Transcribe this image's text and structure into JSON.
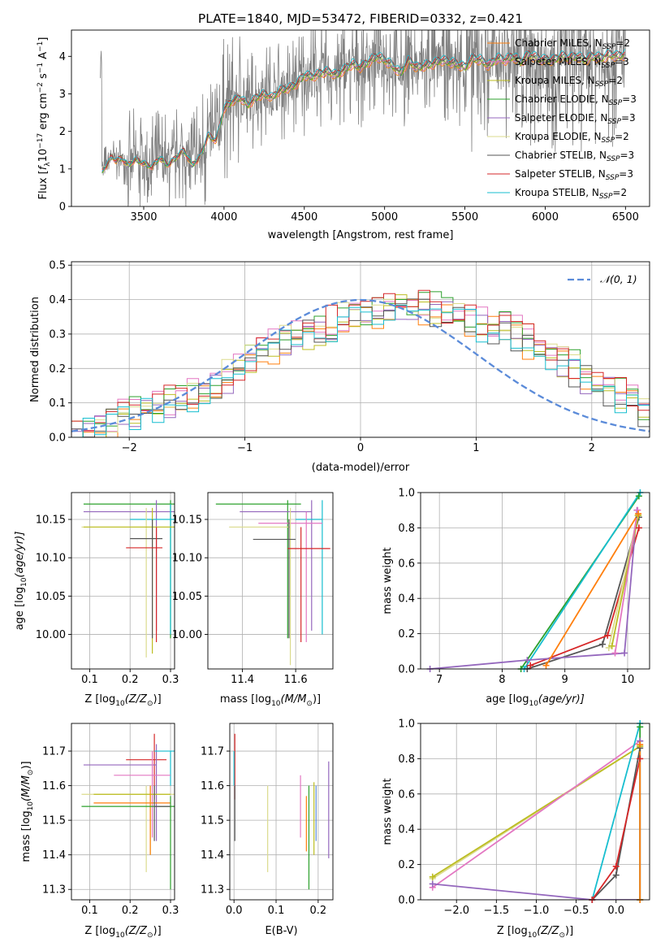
{
  "figure_title": "PLATE=1840, MJD=53472, FIBERID=0332, z=0.421",
  "colors": {
    "data": "#808080",
    "Chabrier MILES": "#ff7f0e",
    "Salpeter MILES": "#e377c2",
    "Kroupa MILES": "#bcbd22",
    "Chabrier ELODIE": "#2ca02c",
    "Salpeter ELODIE": "#9467bd",
    "Kroupa ELODIE": "#dbdb8d",
    "Chabrier STELIB": "#555555",
    "Salpeter STELIB": "#d62728",
    "Kroupa STELIB": "#17becf",
    "normal": "#5b8bd9"
  },
  "chart_data": [
    {
      "id": "spectrum",
      "type": "line",
      "title": "PLATE=1840, MJD=53472, FIBERID=0332, z=0.421",
      "xlabel": "wavelength [Angstrom, rest frame]",
      "ylabel_parts": [
        "Flux [",
        "f",
        "λ",
        "10",
        "−17",
        " erg cm",
        "−2",
        " s",
        "−1",
        " A",
        "−1",
        "]"
      ],
      "xlim": [
        3050,
        6650
      ],
      "ylim": [
        0,
        4.7
      ],
      "xticks": [
        3500,
        4000,
        4500,
        5000,
        5500,
        6000,
        6500
      ],
      "yticks": [
        0,
        1,
        2,
        3,
        4
      ],
      "legend_position": "right",
      "series": [
        {
          "name": "Chabrier MILES",
          "nssp": "2"
        },
        {
          "name": "Salpeter MILES",
          "nssp": "3"
        },
        {
          "name": "Kroupa MILES",
          "nssp": "2"
        },
        {
          "name": "Chabrier ELODIE",
          "nssp": "3"
        },
        {
          "name": "Salpeter ELODIE",
          "nssp": "3"
        },
        {
          "name": "Kroupa ELODIE",
          "nssp": "2"
        },
        {
          "name": "Chabrier STELIB",
          "nssp": "3"
        },
        {
          "name": "Salpeter STELIB",
          "nssp": "3"
        },
        {
          "name": "Kroupa STELIB",
          "nssp": "2"
        }
      ],
      "model_curve": {
        "x": [
          3240,
          3280,
          3300,
          3330,
          3360,
          3400,
          3450,
          3500,
          3550,
          3600,
          3650,
          3700,
          3750,
          3800,
          3850,
          3900,
          3950,
          4000,
          4050,
          4100,
          4150,
          4200,
          4250,
          4300,
          4350,
          4400,
          4450,
          4500,
          4550,
          4600,
          4650,
          4700,
          4750,
          4800,
          4850,
          4900,
          4950,
          5000,
          5050,
          5100,
          5150,
          5200,
          5250,
          5300,
          5350,
          5400,
          5450,
          5500,
          5550,
          5600,
          5650,
          5700,
          5750,
          5800,
          5850,
          5900,
          5950,
          6000,
          6050,
          6100,
          6150,
          6200,
          6250,
          6300,
          6350,
          6400,
          6450,
          6500
        ],
        "y": [
          0.95,
          1.15,
          1.35,
          1.2,
          1.3,
          1.1,
          1.25,
          1.15,
          1.05,
          1.3,
          1.1,
          1.3,
          1.5,
          1.1,
          1.3,
          1.9,
          1.75,
          2.6,
          2.8,
          2.9,
          2.7,
          2.9,
          3.0,
          2.9,
          3.1,
          3.15,
          3.25,
          3.5,
          3.45,
          3.55,
          3.6,
          3.5,
          3.65,
          3.8,
          3.7,
          3.85,
          4.0,
          3.9,
          3.75,
          3.55,
          3.9,
          3.7,
          3.75,
          3.8,
          3.9,
          3.85,
          3.8,
          3.7,
          3.95,
          3.9,
          3.75,
          3.95,
          3.9,
          4.0,
          3.85,
          4.05,
          3.95,
          3.9,
          3.9,
          4.0,
          3.95,
          4.0,
          3.9,
          4.0,
          3.95,
          4.05,
          4.0,
          4.05
        ]
      },
      "data_range": [
        3230,
        6500
      ]
    },
    {
      "id": "residuals",
      "type": "histogram",
      "xlabel": "(data-model)/error",
      "ylabel": "Normed distribution",
      "xlim": [
        -2.5,
        2.5
      ],
      "ylim": [
        0,
        0.51
      ],
      "xticks": [
        -2,
        -1,
        0,
        1,
        2
      ],
      "yticks": [
        0.0,
        0.1,
        0.2,
        0.3,
        0.4,
        0.5
      ],
      "legend": "𝒩(0, 1)",
      "legend_position": "top-right",
      "bin_width": 0.1,
      "base_hist": [
        0.02,
        0.03,
        0.04,
        0.05,
        0.06,
        0.07,
        0.08,
        0.09,
        0.1,
        0.11,
        0.12,
        0.14,
        0.16,
        0.18,
        0.2,
        0.22,
        0.24,
        0.26,
        0.28,
        0.3,
        0.31,
        0.32,
        0.33,
        0.34,
        0.35,
        0.36,
        0.37,
        0.38,
        0.38,
        0.39,
        0.38,
        0.37,
        0.36,
        0.35,
        0.34,
        0.33,
        0.32,
        0.31,
        0.3,
        0.28,
        0.26,
        0.24,
        0.22,
        0.2,
        0.18,
        0.16,
        0.14,
        0.12,
        0.1,
        0.08
      ]
    },
    {
      "id": "age-vs-z",
      "type": "errorbar",
      "xlabel_parts": [
        "Z [log",
        "10",
        "(Z/Z",
        "⊙",
        ")]"
      ],
      "ylabel_parts": [
        "age  [log",
        "10",
        "(age/yr)]"
      ],
      "xlim": [
        0.055,
        0.31
      ],
      "ylim": [
        9.955,
        10.185
      ],
      "xticks": [
        0.1,
        0.2,
        0.3
      ],
      "yticks": [
        10.0,
        10.05,
        10.1,
        10.15
      ],
      "points": [
        {
          "series": "Chabrier ELODIE",
          "x": 0.3,
          "y": 10.17,
          "xerr": [
            0.085,
            0.31
          ],
          "yerr": [
            9.995,
            10.175
          ]
        },
        {
          "series": "Salpeter ELODIE",
          "x": 0.265,
          "y": 10.16,
          "xerr": [
            0.085,
            0.31
          ],
          "yerr": [
            10.005,
            10.175
          ]
        },
        {
          "series": "Kroupa STELIB",
          "x": 0.3,
          "y": 10.15,
          "xerr": [
            0.2,
            0.31
          ],
          "yerr": [
            10.0,
            10.17
          ]
        },
        {
          "series": "Kroupa ELODIE",
          "x": 0.24,
          "y": 10.14,
          "xerr": [
            0.08,
            0.31
          ],
          "yerr": [
            9.97,
            10.165
          ]
        },
        {
          "series": "Kroupa MILES",
          "x": 0.255,
          "y": 10.14,
          "xerr": [
            0.085,
            0.31
          ],
          "yerr": [
            9.975,
            10.165
          ]
        },
        {
          "series": "Chabrier STELIB",
          "x": 0.255,
          "y": 10.125,
          "xerr": [
            0.2,
            0.28
          ],
          "yerr": [
            9.995,
            10.15
          ]
        },
        {
          "series": "Salpeter STELIB",
          "x": 0.265,
          "y": 10.113,
          "xerr": [
            0.19,
            0.28
          ],
          "yerr": [
            9.99,
            10.14
          ]
        }
      ]
    },
    {
      "id": "age-vs-mass",
      "type": "errorbar",
      "xlabel_parts": [
        "mass [log",
        "10",
        "(M/M",
        "⊙",
        ")]"
      ],
      "ylabel_parts": [],
      "xlim": [
        11.27,
        11.74
      ],
      "ylim": [
        9.955,
        10.185
      ],
      "xticks": [
        11.4,
        11.6
      ],
      "yticks": [
        10.0,
        10.05,
        10.1,
        10.15
      ],
      "points": [
        {
          "series": "Chabrier ELODIE",
          "x": 11.57,
          "y": 10.17,
          "xerr": [
            11.3,
            11.62
          ],
          "yerr": [
            9.995,
            10.175
          ]
        },
        {
          "series": "Salpeter ELODIE",
          "x": 11.66,
          "y": 10.16,
          "xerr": [
            11.39,
            11.66
          ],
          "yerr": [
            10.005,
            10.175
          ]
        },
        {
          "series": "Kroupa STELIB",
          "x": 11.7,
          "y": 10.15,
          "xerr": [
            11.6,
            11.7
          ],
          "yerr": [
            10.0,
            10.175
          ]
        },
        {
          "series": "Salpeter MILES",
          "x": 11.64,
          "y": 10.145,
          "xerr": [
            11.46,
            11.7
          ],
          "yerr": [
            9.99,
            10.16
          ]
        },
        {
          "series": "Kroupa ELODIE",
          "x": 11.58,
          "y": 10.14,
          "xerr": [
            11.35,
            11.58
          ],
          "yerr": [
            9.96,
            10.165
          ]
        },
        {
          "series": "Chabrier STELIB",
          "x": 11.575,
          "y": 10.124,
          "xerr": [
            11.44,
            11.6
          ],
          "yerr": [
            9.995,
            10.15
          ]
        },
        {
          "series": "Salpeter STELIB",
          "x": 11.62,
          "y": 10.112,
          "xerr": [
            11.57,
            11.73
          ],
          "yerr": [
            9.99,
            10.14
          ]
        }
      ]
    },
    {
      "id": "weight-vs-age",
      "type": "line",
      "xlabel_parts": [
        "age  [log",
        "10",
        "(age/yr)]"
      ],
      "ylabel": "mass weight",
      "xlim": [
        6.7,
        10.35
      ],
      "ylim": [
        0,
        1.0
      ],
      "xticks": [
        7,
        8,
        9,
        10
      ],
      "yticks": [
        0.0,
        0.2,
        0.4,
        0.6,
        0.8,
        1.0
      ],
      "series": [
        {
          "series": "Chabrier ELODIE",
          "x": [
            8.3,
            10.18
          ],
          "y": [
            0.0,
            0.98
          ]
        },
        {
          "series": "Kroupa STELIB",
          "x": [
            8.35,
            10.2
          ],
          "y": [
            0.0,
            1.0
          ]
        },
        {
          "series": "Chabrier STELIB",
          "x": [
            8.4,
            9.6,
            10.18
          ],
          "y": [
            0.0,
            0.14,
            0.86
          ]
        },
        {
          "series": "Salpeter STELIB",
          "x": [
            8.45,
            9.68,
            10.18
          ],
          "y": [
            0.02,
            0.19,
            0.8
          ]
        },
        {
          "series": "Salpeter ELODIE",
          "x": [
            6.85,
            8.4,
            9.95,
            10.15
          ],
          "y": [
            0.0,
            0.05,
            0.09,
            0.9
          ]
        },
        {
          "series": "Kroupa ELODIE",
          "x": [
            9.7,
            10.16
          ],
          "y": [
            0.12,
            0.87
          ]
        },
        {
          "series": "Kroupa MILES",
          "x": [
            9.75,
            10.17
          ],
          "y": [
            0.13,
            0.87
          ]
        },
        {
          "series": "Salpeter MILES",
          "x": [
            9.8,
            10.16
          ],
          "y": [
            0.09,
            0.9
          ]
        },
        {
          "series": "Chabrier MILES",
          "x": [
            8.7,
            10.17
          ],
          "y": [
            0.02,
            0.88
          ]
        }
      ]
    },
    {
      "id": "mass-vs-z",
      "type": "errorbar",
      "xlabel_parts": [
        "Z [log",
        "10",
        "(Z/Z",
        "⊙",
        ")]"
      ],
      "ylabel_parts": [
        "mass [log",
        "10",
        "(M/M",
        "⊙",
        ")]"
      ],
      "xlim": [
        0.055,
        0.31
      ],
      "ylim": [
        11.27,
        11.78
      ],
      "xticks": [
        0.1,
        0.2,
        0.3
      ],
      "yticks": [
        11.3,
        11.4,
        11.5,
        11.6,
        11.7
      ],
      "points": [
        {
          "series": "Salpeter STELIB",
          "x": 0.26,
          "y": 11.675,
          "xerr": [
            0.19,
            0.29
          ],
          "yerr": [
            11.56,
            11.75
          ]
        },
        {
          "series": "Salpeter ELODIE",
          "x": 0.265,
          "y": 11.66,
          "xerr": [
            0.085,
            0.265
          ],
          "yerr": [
            11.44,
            11.72
          ]
        },
        {
          "series": "Kroupa STELIB",
          "x": 0.3,
          "y": 11.7,
          "xerr": [
            0.26,
            0.31
          ],
          "yerr": [
            11.6,
            11.7
          ]
        },
        {
          "series": "Salpeter MILES",
          "x": 0.255,
          "y": 11.63,
          "xerr": [
            0.16,
            0.3
          ],
          "yerr": [
            11.45,
            11.7
          ]
        },
        {
          "series": "Kroupa ELODIE",
          "x": 0.24,
          "y": 11.575,
          "xerr": [
            0.08,
            0.31
          ],
          "yerr": [
            11.35,
            11.6
          ]
        },
        {
          "series": "Kroupa MILES",
          "x": 0.25,
          "y": 11.575,
          "xerr": [
            0.11,
            0.3
          ],
          "yerr": [
            11.4,
            11.6
          ]
        },
        {
          "series": "Chabrier MILES",
          "x": 0.25,
          "y": 11.55,
          "xerr": [
            0.11,
            0.3
          ],
          "yerr": [
            11.4,
            11.6
          ]
        },
        {
          "series": "Chabrier ELODIE",
          "x": 0.3,
          "y": 11.54,
          "xerr": [
            0.08,
            0.31
          ],
          "yerr": [
            11.3,
            11.57
          ]
        },
        {
          "series": "Chabrier STELIB",
          "x": 0.26,
          "y": 11.54,
          "xerr": [
            0.26,
            0.3
          ],
          "yerr": [
            11.44,
            11.6
          ]
        }
      ]
    },
    {
      "id": "mass-vs-ebv",
      "type": "errorbar",
      "xlabel": "E(B-V)",
      "xlim": [
        -0.01,
        0.235
      ],
      "ylim": [
        11.27,
        11.78
      ],
      "xticks": [
        0.0,
        0.1,
        0.2
      ],
      "yticks": [
        11.3,
        11.4,
        11.5,
        11.6,
        11.7
      ],
      "points": [
        {
          "series": "Salpeter STELIB",
          "x": 0.002,
          "y": 11.65,
          "yerr": [
            11.56,
            11.75
          ]
        },
        {
          "series": "Kroupa STELIB",
          "x": 0.0,
          "y": 11.65,
          "yerr": [
            11.6,
            11.7
          ]
        },
        {
          "series": "Chabrier STELIB",
          "x": 0.002,
          "y": 11.54,
          "yerr": [
            11.44,
            11.6
          ]
        },
        {
          "series": "Kroupa ELODIE",
          "x": 0.08,
          "y": 11.47,
          "yerr": [
            11.35,
            11.6
          ]
        },
        {
          "series": "Salpeter MILES",
          "x": 0.158,
          "y": 11.55,
          "yerr": [
            11.45,
            11.63
          ]
        },
        {
          "series": "Chabrier MILES",
          "x": 0.172,
          "y": 11.49,
          "yerr": [
            11.41,
            11.57
          ]
        },
        {
          "series": "Chabrier ELODIE",
          "x": 0.178,
          "y": 11.48,
          "yerr": [
            11.3,
            11.6
          ]
        },
        {
          "series": "Kroupa MILES",
          "x": 0.19,
          "y": 11.52,
          "yerr": [
            11.4,
            11.61
          ]
        },
        {
          "series": "normal",
          "x": 0.195,
          "y": 11.52,
          "yerr": [
            11.44,
            11.6
          ]
        },
        {
          "series": "Salpeter ELODIE",
          "x": 0.225,
          "y": 11.53,
          "yerr": [
            11.39,
            11.67
          ]
        }
      ]
    },
    {
      "id": "weight-vs-z",
      "type": "line",
      "xlabel_parts": [
        "Z [log",
        "10",
        "(Z/Z",
        "⊙",
        ")]"
      ],
      "ylabel": "mass weight",
      "xlim": [
        -2.45,
        0.42
      ],
      "ylim": [
        0,
        1.0
      ],
      "xticks": [
        -2.0,
        -1.5,
        -1.0,
        -0.5,
        0.0
      ],
      "yticks": [
        0.0,
        0.2,
        0.4,
        0.6,
        0.8,
        1.0
      ],
      "series": [
        {
          "series": "Kroupa ELODIE",
          "x": [
            -2.3,
            0.3
          ],
          "y": [
            0.12,
            0.87
          ]
        },
        {
          "series": "Kroupa MILES",
          "x": [
            -2.3,
            0.3
          ],
          "y": [
            0.13,
            0.87
          ]
        },
        {
          "series": "Salpeter MILES",
          "x": [
            -2.3,
            0.3
          ],
          "y": [
            0.07,
            0.9
          ]
        },
        {
          "series": "Salpeter ELODIE",
          "x": [
            -2.3,
            -0.3,
            0.3,
            0.3
          ],
          "y": [
            0.09,
            0.0,
            0.0,
            0.9
          ]
        },
        {
          "series": "Kroupa STELIB",
          "x": [
            -0.3,
            0.3
          ],
          "y": [
            0.0,
            1.0
          ]
        },
        {
          "series": "Chabrier STELIB",
          "x": [
            -0.3,
            0.0,
            0.3
          ],
          "y": [
            0.0,
            0.14,
            0.86
          ]
        },
        {
          "series": "Salpeter STELIB",
          "x": [
            -0.3,
            0.0,
            0.3
          ],
          "y": [
            0.0,
            0.19,
            0.8
          ]
        },
        {
          "series": "Chabrier ELODIE",
          "x": [
            0.3,
            0.3
          ],
          "y": [
            0.0,
            0.98
          ]
        },
        {
          "series": "Chabrier MILES",
          "x": [
            0.3,
            0.3
          ],
          "y": [
            0.0,
            0.88
          ]
        }
      ]
    }
  ]
}
